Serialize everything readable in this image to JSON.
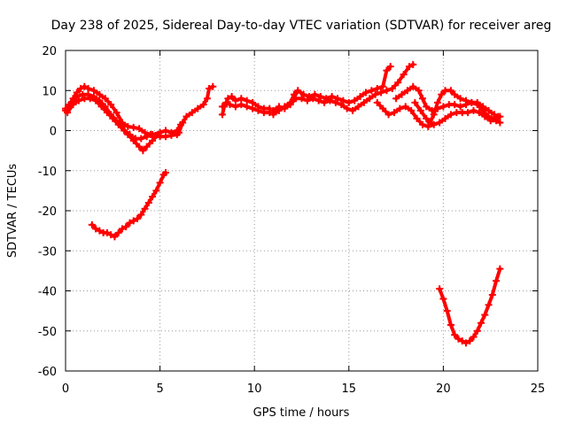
{
  "chart_data": {
    "type": "scatter",
    "title": "Day 238 of 2025, Sidereal Day-to-day VTEC variation (SDTVAR) for receiver areg",
    "xlabel": "GPS time / hours",
    "ylabel": "SDTVAR / TECUs",
    "xlim": [
      0,
      25
    ],
    "ylim": [
      -60,
      20
    ],
    "xticks": [
      0,
      5,
      10,
      15,
      20,
      25
    ],
    "yticks": [
      -60,
      -50,
      -40,
      -30,
      -20,
      -10,
      0,
      10,
      20
    ],
    "grid": true,
    "marker": "+",
    "series_color": "#ff0000",
    "series": [
      {
        "name": "track-morning-upper",
        "points": [
          [
            0.0,
            5
          ],
          [
            0.2,
            6.5
          ],
          [
            0.4,
            8
          ],
          [
            0.6,
            9.5
          ],
          [
            0.8,
            10.5
          ],
          [
            1.0,
            11
          ],
          [
            1.2,
            10.5
          ],
          [
            1.5,
            10
          ],
          [
            1.8,
            9
          ],
          [
            2.1,
            8
          ],
          [
            2.4,
            6.5
          ],
          [
            2.7,
            4.5
          ],
          [
            3.0,
            2
          ],
          [
            3.3,
            1
          ],
          [
            3.6,
            0.8
          ],
          [
            3.9,
            0.5
          ],
          [
            4.2,
            -0.5
          ],
          [
            4.5,
            -1
          ],
          [
            4.8,
            -1.2
          ],
          [
            5.0,
            -1.5
          ],
          [
            5.3,
            -1.5
          ],
          [
            5.6,
            -1.2
          ],
          [
            5.9,
            -1
          ]
        ]
      },
      {
        "name": "track-morning-mid",
        "points": [
          [
            0.0,
            5.5
          ],
          [
            0.3,
            7
          ],
          [
            0.6,
            8.5
          ],
          [
            0.9,
            9
          ],
          [
            1.2,
            9
          ],
          [
            1.5,
            8.5
          ],
          [
            1.8,
            7.5
          ],
          [
            2.1,
            6
          ],
          [
            2.4,
            4
          ],
          [
            2.7,
            2.5
          ],
          [
            3.0,
            1
          ],
          [
            3.3,
            -1
          ],
          [
            3.6,
            -2.5
          ],
          [
            3.9,
            -4
          ],
          [
            4.1,
            -5
          ],
          [
            4.3,
            -4
          ],
          [
            4.6,
            -2.5
          ],
          [
            4.9,
            -1
          ]
        ]
      },
      {
        "name": "track-morning-lower",
        "points": [
          [
            0.1,
            4.5
          ],
          [
            0.4,
            6.5
          ],
          [
            0.7,
            7.5
          ],
          [
            1.0,
            8
          ],
          [
            1.3,
            8
          ],
          [
            1.6,
            7.5
          ],
          [
            1.9,
            6
          ],
          [
            2.2,
            4.5
          ],
          [
            2.5,
            3
          ],
          [
            2.8,
            1.5
          ],
          [
            3.1,
            0
          ],
          [
            3.4,
            -1
          ],
          [
            3.7,
            -2
          ],
          [
            4.0,
            -2
          ],
          [
            4.3,
            -1.5
          ],
          [
            4.6,
            -1
          ],
          [
            5.0,
            -0.5
          ],
          [
            5.3,
            0
          ],
          [
            5.6,
            -0.5
          ],
          [
            5.9,
            0
          ],
          [
            6.1,
            1.5
          ]
        ]
      },
      {
        "name": "track-midday-a",
        "points": [
          [
            6.0,
            -0.5
          ],
          [
            6.2,
            2
          ],
          [
            6.4,
            3.5
          ],
          [
            6.7,
            4.5
          ],
          [
            7.0,
            5.5
          ],
          [
            7.3,
            6.5
          ],
          [
            7.5,
            8
          ],
          [
            7.6,
            10.5
          ],
          [
            7.8,
            11
          ]
        ]
      },
      {
        "name": "track-midday-b",
        "points": [
          [
            8.3,
            4
          ],
          [
            8.4,
            6
          ],
          [
            8.6,
            8
          ],
          [
            8.8,
            8.5
          ],
          [
            9.0,
            7.5
          ],
          [
            9.3,
            8
          ],
          [
            9.6,
            7.5
          ],
          [
            9.9,
            7
          ],
          [
            10.2,
            6
          ],
          [
            10.5,
            5.5
          ],
          [
            10.8,
            5.5
          ]
        ]
      },
      {
        "name": "track-midday-c",
        "points": [
          [
            8.3,
            6
          ],
          [
            8.5,
            7
          ],
          [
            8.7,
            6.5
          ],
          [
            9.0,
            6
          ],
          [
            9.3,
            6.5
          ],
          [
            9.6,
            6
          ],
          [
            9.9,
            5.5
          ],
          [
            10.2,
            5
          ],
          [
            10.5,
            4.5
          ],
          [
            10.8,
            4.5
          ]
        ]
      },
      {
        "name": "track-afternoon-a",
        "points": [
          [
            11.0,
            4
          ],
          [
            11.3,
            5
          ],
          [
            11.6,
            6
          ],
          [
            11.9,
            7
          ],
          [
            12.1,
            9
          ],
          [
            12.3,
            10
          ],
          [
            12.6,
            9
          ],
          [
            12.9,
            8.5
          ],
          [
            13.2,
            9
          ],
          [
            13.5,
            8.5
          ],
          [
            13.8,
            8
          ],
          [
            14.1,
            8.5
          ],
          [
            14.4,
            8
          ],
          [
            14.7,
            7.5
          ],
          [
            15.0,
            7
          ],
          [
            15.3,
            7.5
          ],
          [
            15.6,
            8.5
          ],
          [
            15.9,
            9.5
          ],
          [
            16.2,
            10
          ],
          [
            16.5,
            10.5
          ],
          [
            16.8,
            11
          ],
          [
            17.0,
            15
          ],
          [
            17.2,
            16
          ]
        ]
      },
      {
        "name": "track-afternoon-b",
        "points": [
          [
            11.0,
            5
          ],
          [
            11.3,
            6
          ],
          [
            11.6,
            5.5
          ],
          [
            11.9,
            6.5
          ],
          [
            12.2,
            8
          ],
          [
            12.5,
            8
          ],
          [
            12.8,
            7.5
          ],
          [
            13.1,
            8
          ],
          [
            13.4,
            7.5
          ],
          [
            13.7,
            7
          ],
          [
            14.0,
            7.5
          ],
          [
            14.3,
            7
          ],
          [
            14.6,
            6.5
          ],
          [
            14.9,
            5.5
          ],
          [
            15.2,
            5
          ],
          [
            15.5,
            6
          ],
          [
            15.8,
            7
          ],
          [
            16.1,
            8
          ],
          [
            16.4,
            9
          ],
          [
            16.7,
            9.5
          ],
          [
            17.0,
            10
          ],
          [
            17.3,
            10.5
          ],
          [
            17.6,
            12
          ],
          [
            17.9,
            14
          ],
          [
            18.2,
            16
          ],
          [
            18.4,
            16.5
          ]
        ]
      },
      {
        "name": "track-evening-a",
        "points": [
          [
            16.5,
            7
          ],
          [
            16.8,
            5.5
          ],
          [
            17.1,
            4
          ],
          [
            17.4,
            4.5
          ],
          [
            17.7,
            5.5
          ],
          [
            18.0,
            6
          ],
          [
            18.3,
            5
          ],
          [
            18.6,
            3
          ],
          [
            18.9,
            1.5
          ],
          [
            19.2,
            1
          ],
          [
            19.5,
            1.5
          ],
          [
            19.8,
            2
          ],
          [
            20.1,
            3
          ],
          [
            20.4,
            4
          ],
          [
            20.7,
            4.5
          ],
          [
            21.0,
            4.5
          ],
          [
            21.3,
            4.5
          ],
          [
            21.6,
            5
          ],
          [
            21.9,
            4.5
          ],
          [
            22.2,
            3.5
          ],
          [
            22.5,
            2.5
          ],
          [
            22.8,
            2.5
          ],
          [
            23.0,
            2
          ]
        ]
      },
      {
        "name": "track-evening-b",
        "points": [
          [
            17.5,
            8
          ],
          [
            17.8,
            9
          ],
          [
            18.1,
            10
          ],
          [
            18.4,
            11
          ],
          [
            18.7,
            10
          ],
          [
            18.9,
            8
          ],
          [
            19.1,
            6
          ],
          [
            19.4,
            5
          ],
          [
            19.7,
            5.5
          ],
          [
            20.0,
            6
          ],
          [
            20.3,
            6.5
          ],
          [
            20.6,
            6.5
          ],
          [
            20.9,
            6
          ],
          [
            21.2,
            6.5
          ],
          [
            21.5,
            7
          ],
          [
            21.8,
            7
          ],
          [
            22.1,
            6
          ],
          [
            22.4,
            5
          ],
          [
            22.7,
            4
          ],
          [
            22.9,
            3.5
          ]
        ]
      },
      {
        "name": "track-evening-c",
        "points": [
          [
            18.5,
            7
          ],
          [
            18.8,
            5
          ],
          [
            19.1,
            3
          ],
          [
            19.3,
            2
          ],
          [
            19.5,
            4
          ],
          [
            19.7,
            7
          ],
          [
            19.9,
            9
          ],
          [
            20.1,
            10
          ],
          [
            20.4,
            10
          ],
          [
            20.6,
            9
          ],
          [
            20.9,
            8
          ],
          [
            21.2,
            7.5
          ],
          [
            21.5,
            7
          ],
          [
            21.8,
            6.5
          ],
          [
            22.1,
            5
          ],
          [
            22.4,
            3.5
          ],
          [
            22.7,
            3
          ],
          [
            23.0,
            3.5
          ]
        ]
      },
      {
        "name": "track-low-morning",
        "points": [
          [
            1.4,
            -23.5
          ],
          [
            1.6,
            -24.5
          ],
          [
            1.8,
            -25
          ],
          [
            2.0,
            -25.5
          ],
          [
            2.2,
            -25.5
          ],
          [
            2.4,
            -26
          ],
          [
            2.6,
            -26.5
          ],
          [
            2.8,
            -25.5
          ],
          [
            3.0,
            -24.5
          ],
          [
            3.2,
            -24
          ],
          [
            3.4,
            -23
          ],
          [
            3.6,
            -22.5
          ],
          [
            3.8,
            -22
          ],
          [
            4.0,
            -21
          ],
          [
            4.2,
            -19.5
          ],
          [
            4.4,
            -18
          ],
          [
            4.6,
            -16.5
          ],
          [
            4.8,
            -15
          ],
          [
            5.0,
            -13
          ],
          [
            5.2,
            -11
          ],
          [
            5.3,
            -10.5
          ]
        ]
      },
      {
        "name": "track-low-evening",
        "points": [
          [
            19.8,
            -39.5
          ],
          [
            20.0,
            -42
          ],
          [
            20.2,
            -45
          ],
          [
            20.4,
            -48.5
          ],
          [
            20.6,
            -51
          ],
          [
            20.8,
            -52
          ],
          [
            21.0,
            -52.5
          ],
          [
            21.2,
            -53
          ],
          [
            21.4,
            -52.5
          ],
          [
            21.6,
            -51.5
          ],
          [
            21.8,
            -50
          ],
          [
            22.0,
            -48
          ],
          [
            22.2,
            -46
          ],
          [
            22.4,
            -43.5
          ],
          [
            22.6,
            -41
          ],
          [
            22.8,
            -37.5
          ],
          [
            23.0,
            -34.5
          ]
        ]
      }
    ]
  }
}
